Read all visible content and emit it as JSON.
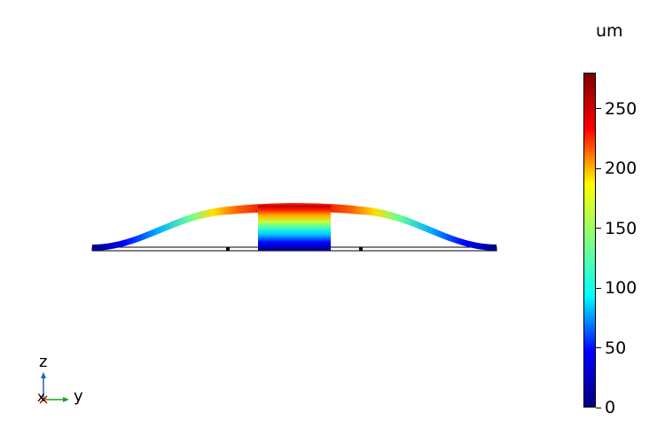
{
  "colorbar": {
    "unit": "um",
    "min": 0,
    "max": 280,
    "ticks": [
      {
        "value": 0,
        "label": "0"
      },
      {
        "value": 50,
        "label": "50"
      },
      {
        "value": 100,
        "label": "100"
      },
      {
        "value": 150,
        "label": "150"
      },
      {
        "value": 200,
        "label": "200"
      },
      {
        "value": 250,
        "label": "250"
      }
    ],
    "colormap": [
      "#00007f",
      "#0000ff",
      "#00ffff",
      "#7fff7f",
      "#ffff00",
      "#ff0000",
      "#7f0000"
    ]
  },
  "axes_triad": {
    "z": "z",
    "y": "y",
    "x": "x"
  }
}
